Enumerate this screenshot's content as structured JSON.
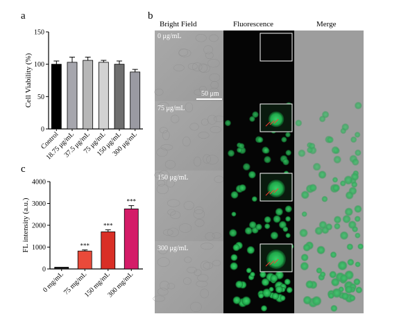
{
  "panels": {
    "a": {
      "letter": "a",
      "chart_data": {
        "type": "bar",
        "categories": [
          "Control",
          "18.75 μg/mL",
          "37.5 μg/mL",
          "75 μg/mL",
          "150 μg/mL",
          "300 μg/mL"
        ],
        "values": [
          100,
          103,
          106,
          103,
          100,
          88
        ],
        "errors": [
          5,
          8,
          5,
          3,
          5,
          4
        ],
        "colors": [
          "#000000",
          "#a6a6ad",
          "#b7b7b7",
          "#d2d2d2",
          "#6e6e6e",
          "#9a9aa2"
        ],
        "ylabel": "Cell Viability (%)",
        "ylim": [
          0,
          150
        ],
        "yticks": [
          0,
          50,
          100,
          150
        ],
        "grid": false
      }
    },
    "c": {
      "letter": "c",
      "chart_data": {
        "type": "bar",
        "categories": [
          "0 mg/mL",
          "75 mg/mL",
          "150 mg/mL",
          "300 mg/mL"
        ],
        "values": [
          80,
          820,
          1700,
          2750
        ],
        "errors": [
          0,
          50,
          90,
          150
        ],
        "significance": [
          "",
          "***",
          "***",
          "***"
        ],
        "colors": [
          "#1a1a1a",
          "#ea4a3a",
          "#d92f26",
          "#d41c68"
        ],
        "ylabel": "FL intensity (a.u.)",
        "ylim": [
          0,
          4000
        ],
        "yticks": [
          0,
          1000,
          2000,
          3000,
          4000
        ],
        "grid": false
      }
    },
    "b": {
      "letter": "b",
      "columns": [
        "Bright Field",
        "Fluorescence",
        "Merge"
      ],
      "rows": [
        "0 μg/mL",
        "75 μg/mL",
        "150 μg/mL",
        "300 μg/mL"
      ],
      "scale_bar": "50 μm"
    }
  }
}
